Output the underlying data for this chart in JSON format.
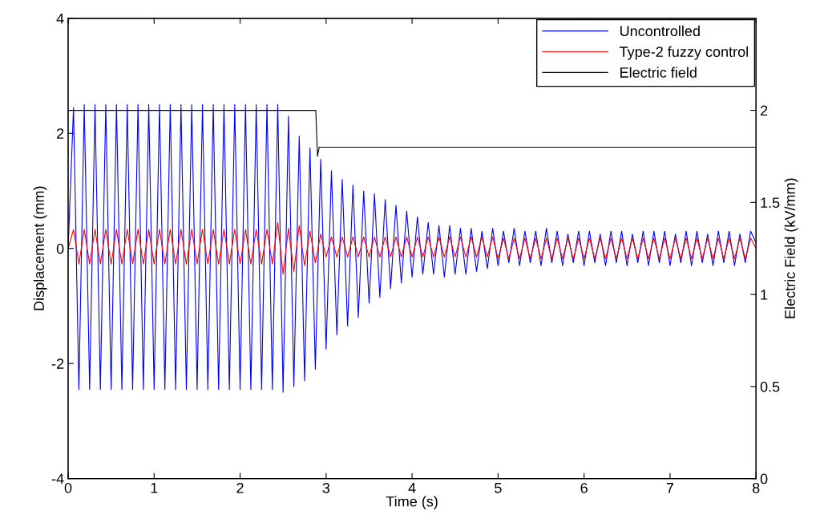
{
  "chart_data": {
    "type": "line",
    "xlabel": "Time (s)",
    "ylabel": "Displacement (mm)",
    "y2label": "Electric Field (kV/mm)",
    "x": [
      0,
      0.0625,
      0.125,
      0.1875,
      0.25,
      0.3125,
      0.375,
      0.4375,
      0.5,
      0.5625,
      0.625,
      0.6875,
      0.75,
      0.8125,
      0.875,
      0.9375,
      1,
      1.0625,
      1.125,
      1.1875,
      1.25,
      1.3125,
      1.375,
      1.4375,
      1.5,
      1.5625,
      1.625,
      1.6875,
      1.75,
      1.8125,
      1.875,
      1.9375,
      2,
      2.0625,
      2.125,
      2.1875,
      2.25,
      2.3125,
      2.375,
      2.4375,
      2.5,
      2.5625,
      2.625,
      2.6875,
      2.75,
      2.8125,
      2.875,
      2.9375,
      3,
      3.0625,
      3.125,
      3.1875,
      3.25,
      3.3125,
      3.375,
      3.4375,
      3.5,
      3.5625,
      3.625,
      3.6875,
      3.75,
      3.8125,
      3.875,
      3.9375,
      4,
      4.0625,
      4.125,
      4.1875,
      4.25,
      4.3125,
      4.375,
      4.4375,
      4.5,
      4.5625,
      4.625,
      4.6875,
      4.75,
      4.8125,
      4.875,
      4.9375,
      5,
      5.0625,
      5.125,
      5.1875,
      5.25,
      5.3125,
      5.375,
      5.4375,
      5.5,
      5.5625,
      5.625,
      5.6875,
      5.75,
      5.8125,
      5.875,
      5.9375,
      6,
      6.0625,
      6.125,
      6.1875,
      6.25,
      6.3125,
      6.375,
      6.4375,
      6.5,
      6.5625,
      6.625,
      6.6875,
      6.75,
      6.8125,
      6.875,
      6.9375,
      7,
      7.0625,
      7.125,
      7.1875,
      7.25,
      7.3125,
      7.375,
      7.4375,
      7.5,
      7.5625,
      7.625,
      7.6875,
      7.75,
      7.8125,
      7.875,
      7.9375,
      8
    ],
    "series": [
      {
        "name": "Uncontrolled",
        "color": "#0000ff",
        "values": [
          0,
          2.45,
          -2.45,
          2.5,
          -2.45,
          2.5,
          -2.45,
          2.5,
          -2.45,
          2.5,
          -2.45,
          2.5,
          -2.45,
          2.5,
          -2.45,
          2.5,
          -2.45,
          2.5,
          -2.45,
          2.5,
          -2.45,
          2.5,
          -2.45,
          2.5,
          -2.45,
          2.5,
          -2.45,
          2.5,
          -2.45,
          2.5,
          -2.45,
          2.5,
          -2.45,
          2.5,
          -2.45,
          2.5,
          -2.45,
          2.5,
          -2.45,
          2.5,
          -2.5,
          2.3,
          -2.4,
          1.95,
          -2.3,
          1.75,
          -2.1,
          1.55,
          -1.75,
          1.35,
          -1.5,
          1.2,
          -1.35,
          1.1,
          -1.2,
          1.0,
          -0.95,
          0.95,
          -0.85,
          0.85,
          -0.7,
          0.75,
          -0.6,
          0.65,
          -0.5,
          0.55,
          -0.45,
          0.45,
          -0.45,
          0.4,
          -0.5,
          0.4,
          -0.45,
          0.35,
          -0.45,
          0.35,
          -0.4,
          0.3,
          -0.35,
          0.35,
          -0.3,
          0.3,
          -0.25,
          0.35,
          -0.3,
          0.3,
          -0.25,
          0.3,
          -0.3,
          0.35,
          -0.25,
          0.3,
          -0.3,
          0.25,
          -0.25,
          0.3,
          -0.3,
          0.3,
          -0.25,
          0.25,
          -0.3,
          0.3,
          -0.25,
          0.3,
          -0.3,
          0.25,
          -0.25,
          0.3,
          -0.3,
          0.3,
          -0.25,
          0.3,
          -0.3,
          0.25,
          -0.25,
          0.3,
          -0.3,
          0.3,
          -0.25,
          0.25,
          -0.3,
          0.3,
          -0.25,
          0.3,
          -0.3,
          0.25,
          -0.25,
          0.3,
          0.1
        ]
      },
      {
        "name": "Type-2 fuzzy control",
        "color": "#ff0000",
        "values": [
          0,
          0.33,
          -0.27,
          0.33,
          -0.27,
          0.33,
          -0.27,
          0.33,
          -0.27,
          0.33,
          -0.27,
          0.33,
          -0.27,
          0.33,
          -0.27,
          0.33,
          -0.27,
          0.33,
          -0.27,
          0.33,
          -0.27,
          0.33,
          -0.27,
          0.33,
          -0.27,
          0.33,
          -0.27,
          0.33,
          -0.27,
          0.33,
          -0.27,
          0.33,
          -0.27,
          0.33,
          -0.27,
          0.33,
          -0.27,
          0.33,
          -0.27,
          0.45,
          -0.45,
          0.35,
          -0.4,
          0.4,
          -0.3,
          0.3,
          -0.25,
          0.25,
          -0.15,
          0.2,
          -0.15,
          0.2,
          -0.15,
          0.2,
          -0.15,
          0.2,
          -0.15,
          0.2,
          -0.15,
          0.2,
          -0.15,
          0.2,
          -0.15,
          0.2,
          -0.15,
          0.2,
          -0.15,
          0.2,
          -0.15,
          0.2,
          -0.15,
          0.2,
          -0.15,
          0.2,
          -0.15,
          0.2,
          -0.15,
          0.2,
          -0.15,
          0.2,
          -0.18,
          0.18,
          -0.18,
          0.18,
          -0.18,
          0.18,
          -0.18,
          0.18,
          -0.18,
          0.18,
          -0.18,
          0.18,
          -0.18,
          0.18,
          -0.18,
          0.18,
          -0.18,
          0.18,
          -0.18,
          0.18,
          -0.18,
          0.18,
          -0.18,
          0.18,
          -0.18,
          0.18,
          -0.18,
          0.18,
          -0.18,
          0.18,
          -0.18,
          0.18,
          -0.18,
          0.18,
          -0.18,
          0.18,
          -0.18,
          0.18,
          -0.18,
          0.18,
          -0.18,
          0.18,
          -0.18,
          0.18,
          -0.18,
          0.18,
          -0.18,
          0.18,
          0
        ]
      },
      {
        "name": "Electric field",
        "color": "#000000",
        "axis": "y2",
        "x": [
          0,
          2.88,
          2.9,
          2.92,
          8
        ],
        "values": [
          2.0,
          2.0,
          1.75,
          1.8,
          1.8
        ]
      }
    ],
    "xlim": [
      0,
      8
    ],
    "xticks": [
      0,
      1,
      2,
      3,
      4,
      5,
      6,
      7,
      8
    ],
    "ylim": [
      -4,
      4
    ],
    "yticks": [
      -4,
      -2,
      0,
      2,
      4
    ],
    "y2lim": [
      0,
      2.5
    ],
    "y2ticks": [
      0,
      0.5,
      1,
      1.5,
      2
    ],
    "grid": false,
    "legend": "top right",
    "marker": "none",
    "line_style": "solid"
  }
}
